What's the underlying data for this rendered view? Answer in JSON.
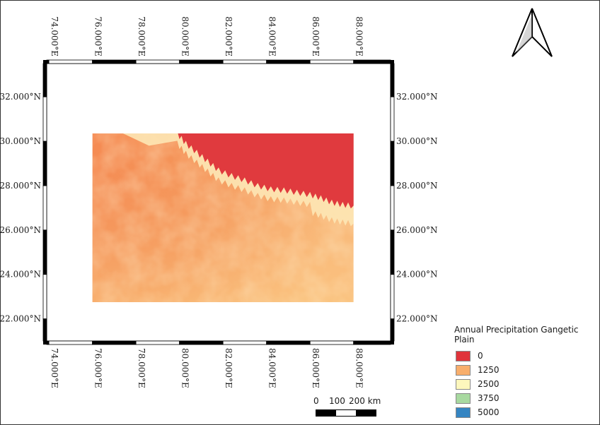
{
  "map": {
    "lon_ticks": [
      "74.000°E",
      "76.000°E",
      "78.000°E",
      "80.000°E",
      "82.000°E",
      "84.000°E",
      "86.000°E",
      "88.000°E"
    ],
    "lat_ticks": [
      "22.000°N",
      "24.000°N",
      "26.000°N",
      "28.000°N",
      "30.000°N",
      "32.000°N"
    ],
    "extent": {
      "lon": [
        73.9,
        89.7
      ],
      "lat": [
        21.0,
        33.5
      ]
    },
    "raster_extent": {
      "lon": [
        76.0,
        88.0
      ],
      "lat": [
        22.75,
        30.35
      ]
    },
    "north_arrow_icon": "north-arrow-icon"
  },
  "legend": {
    "title": "Annual Precipitation Gangetic Plain",
    "items": [
      {
        "label": "0",
        "color": "#e0343b"
      },
      {
        "label": "1250",
        "color": "#f8ae6c"
      },
      {
        "label": "2500",
        "color": "#fdf7bd"
      },
      {
        "label": "3750",
        "color": "#a8d9a0"
      },
      {
        "label": "5000",
        "color": "#3585c2"
      }
    ]
  },
  "scalebar": {
    "labels": [
      "0",
      "100",
      "200 km"
    ],
    "segment_colors": [
      "#000000",
      "#ffffff",
      "#000000"
    ]
  }
}
